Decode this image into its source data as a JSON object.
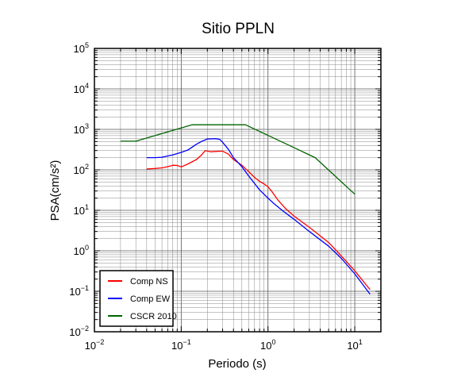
{
  "chart_data": {
    "type": "line",
    "title": "Sitio PPLN",
    "xlabel": "Periodo (s)",
    "ylabel": "PSA(cm/s²)",
    "xscale": "log",
    "yscale": "log",
    "xlim": [
      0.01,
      20
    ],
    "ylim": [
      0.01,
      100000
    ],
    "grid": true,
    "legend_position": "bottom-left",
    "x_ticks": [
      {
        "value": 0.01,
        "base": "10",
        "exp": "−2"
      },
      {
        "value": 0.1,
        "base": "10",
        "exp": "−1"
      },
      {
        "value": 1,
        "base": "10",
        "exp": "0"
      },
      {
        "value": 10,
        "base": "10",
        "exp": "1"
      }
    ],
    "y_ticks": [
      {
        "value": 0.01,
        "base": "10",
        "exp": "−2"
      },
      {
        "value": 0.1,
        "base": "10",
        "exp": "−1"
      },
      {
        "value": 1,
        "base": "10",
        "exp": "0"
      },
      {
        "value": 10,
        "base": "10",
        "exp": "1"
      },
      {
        "value": 100,
        "base": "10",
        "exp": "2"
      },
      {
        "value": 1000,
        "base": "10",
        "exp": "3"
      },
      {
        "value": 10000,
        "base": "10",
        "exp": "4"
      },
      {
        "value": 100000,
        "base": "10",
        "exp": "5"
      }
    ],
    "series": [
      {
        "name": "Comp NS",
        "color": "#ff0000",
        "points": [
          [
            0.04,
            105
          ],
          [
            0.05,
            108
          ],
          [
            0.06,
            112
          ],
          [
            0.07,
            120
          ],
          [
            0.08,
            130
          ],
          [
            0.09,
            128
          ],
          [
            0.1,
            118
          ],
          [
            0.12,
            140
          ],
          [
            0.15,
            180
          ],
          [
            0.17,
            230
          ],
          [
            0.19,
            300
          ],
          [
            0.22,
            280
          ],
          [
            0.25,
            285
          ],
          [
            0.3,
            290
          ],
          [
            0.35,
            245
          ],
          [
            0.4,
            180
          ],
          [
            0.5,
            130
          ],
          [
            0.6,
            90
          ],
          [
            0.7,
            65
          ],
          [
            0.8,
            52
          ],
          [
            0.9,
            45
          ],
          [
            1.0,
            38
          ],
          [
            1.1,
            30
          ],
          [
            1.3,
            18
          ],
          [
            1.6,
            11
          ],
          [
            2.0,
            7.2
          ],
          [
            3,
            3.8
          ],
          [
            5,
            1.6
          ],
          [
            7,
            0.75
          ],
          [
            10,
            0.32
          ],
          [
            15,
            0.11
          ]
        ]
      },
      {
        "name": "Comp EW",
        "color": "#0000ff",
        "points": [
          [
            0.04,
            200
          ],
          [
            0.05,
            200
          ],
          [
            0.06,
            205
          ],
          [
            0.07,
            220
          ],
          [
            0.08,
            235
          ],
          [
            0.1,
            270
          ],
          [
            0.12,
            310
          ],
          [
            0.15,
            430
          ],
          [
            0.17,
            500
          ],
          [
            0.2,
            580
          ],
          [
            0.25,
            590
          ],
          [
            0.28,
            560
          ],
          [
            0.3,
            480
          ],
          [
            0.35,
            320
          ],
          [
            0.4,
            200
          ],
          [
            0.5,
            120
          ],
          [
            0.6,
            70
          ],
          [
            0.8,
            32
          ],
          [
            1.0,
            20
          ],
          [
            1.2,
            14
          ],
          [
            1.5,
            9.5
          ],
          [
            2,
            6
          ],
          [
            3,
            3
          ],
          [
            5,
            1.3
          ],
          [
            7,
            0.65
          ],
          [
            10,
            0.27
          ],
          [
            15,
            0.085
          ]
        ]
      },
      {
        "name": "CSCR 2010",
        "color": "#006400",
        "points": [
          [
            0.02,
            510
          ],
          [
            0.03,
            510
          ],
          [
            0.133,
            1300
          ],
          [
            0.55,
            1300
          ],
          [
            3.5,
            200
          ],
          [
            10,
            25
          ]
        ]
      }
    ]
  }
}
